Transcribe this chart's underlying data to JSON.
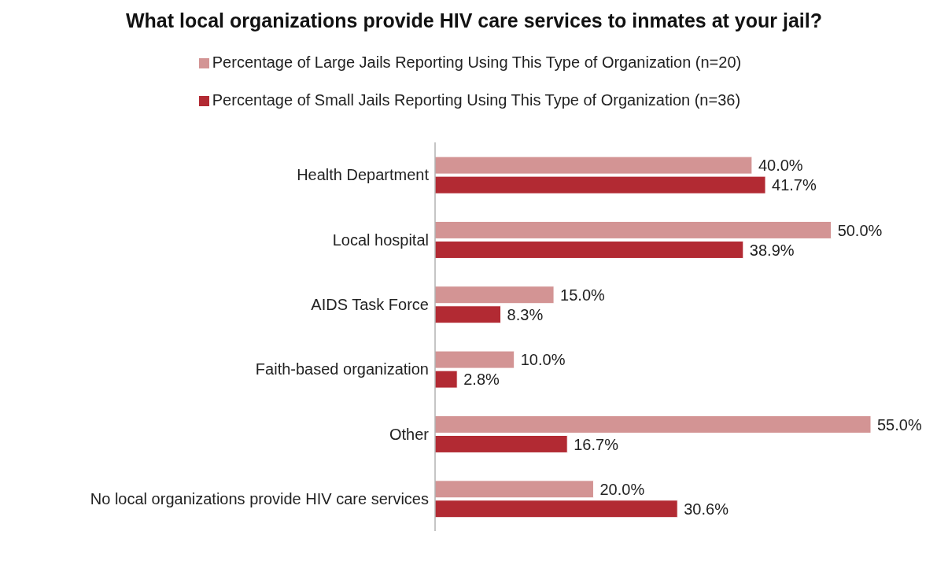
{
  "chart_data": {
    "type": "bar",
    "orientation": "horizontal",
    "title": "What local organizations provide HIV care services to inmates at your jail?",
    "categories": [
      "Health Department",
      "Local hospital",
      "AIDS Task Force",
      "Faith-based organization",
      "Other",
      "No local organizations provide HIV care services"
    ],
    "series": [
      {
        "name": "Percentage of Large Jails Reporting Using This Type of Organization (n=20)",
        "color": "#d39494",
        "values": [
          40.0,
          50.0,
          15.0,
          10.0,
          55.0,
          20.0
        ],
        "value_labels": [
          "40.0%",
          "50.0%",
          "15.0%",
          "10.0%",
          "55.0%",
          "20.0%"
        ]
      },
      {
        "name": "Percentage of Small Jails Reporting Using This Type of Organization (n=36)",
        "color": "#b22a33",
        "values": [
          41.7,
          38.9,
          8.3,
          2.8,
          16.7,
          30.6
        ],
        "value_labels": [
          "41.7%",
          "38.9%",
          "8.3%",
          "2.8%",
          "16.7%",
          "30.6%"
        ]
      }
    ],
    "legend": "top",
    "grid": false
  }
}
